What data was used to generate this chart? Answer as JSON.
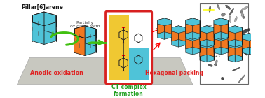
{
  "label_pillar": "Pillar[6]arene",
  "label_partial": "Partially\noxidized form",
  "label_anodic": "Anodic oxidation",
  "label_ct": "CT complex\nformation",
  "label_hexagonal": "Hexagonal packing",
  "color_cyan": "#4FC3D8",
  "color_orange": "#F07820",
  "color_yellow": "#F0C832",
  "color_green": "#40C010",
  "color_red_label": "#E02020",
  "color_red_box": "#D82020",
  "color_dark": "#1A1A1A",
  "color_platform": "#C8C8C0",
  "figsize": [
    3.78,
    1.4
  ],
  "dpi": 100
}
